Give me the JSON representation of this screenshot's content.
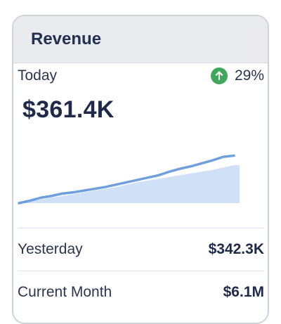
{
  "card": {
    "title": "Revenue"
  },
  "today": {
    "label": "Today",
    "change": "29%",
    "change_direction": "up",
    "change_color": "#3fa85b",
    "value": "$361.4K"
  },
  "chart_data": {
    "type": "area",
    "title": "",
    "xlabel": "",
    "ylabel": "",
    "grid": false,
    "legend": "none",
    "x": [
      0,
      1,
      2,
      3,
      4,
      5,
      6,
      7,
      8,
      9,
      10,
      11,
      12,
      13,
      14,
      15,
      16,
      17,
      18,
      19,
      20
    ],
    "series": [
      {
        "color": "#6f9fdc",
        "values": [
          0,
          4,
          9,
          12,
          16,
          18,
          21,
          24,
          27,
          31,
          35,
          39,
          43,
          47,
          53,
          58,
          62,
          67,
          72,
          78,
          80
        ]
      }
    ],
    "area": {
      "color": "#cfe0f7",
      "values": [
        0,
        3,
        6,
        9,
        12,
        15,
        18,
        21,
        24,
        27,
        31,
        35,
        38,
        41,
        44,
        47,
        50,
        53,
        56,
        60,
        64
      ]
    },
    "ylim": [
      0,
      90
    ]
  },
  "rows": [
    {
      "label": "Yesterday",
      "value": "$342.3K"
    },
    {
      "label": "Current Month",
      "value": "$6.1M"
    }
  ]
}
